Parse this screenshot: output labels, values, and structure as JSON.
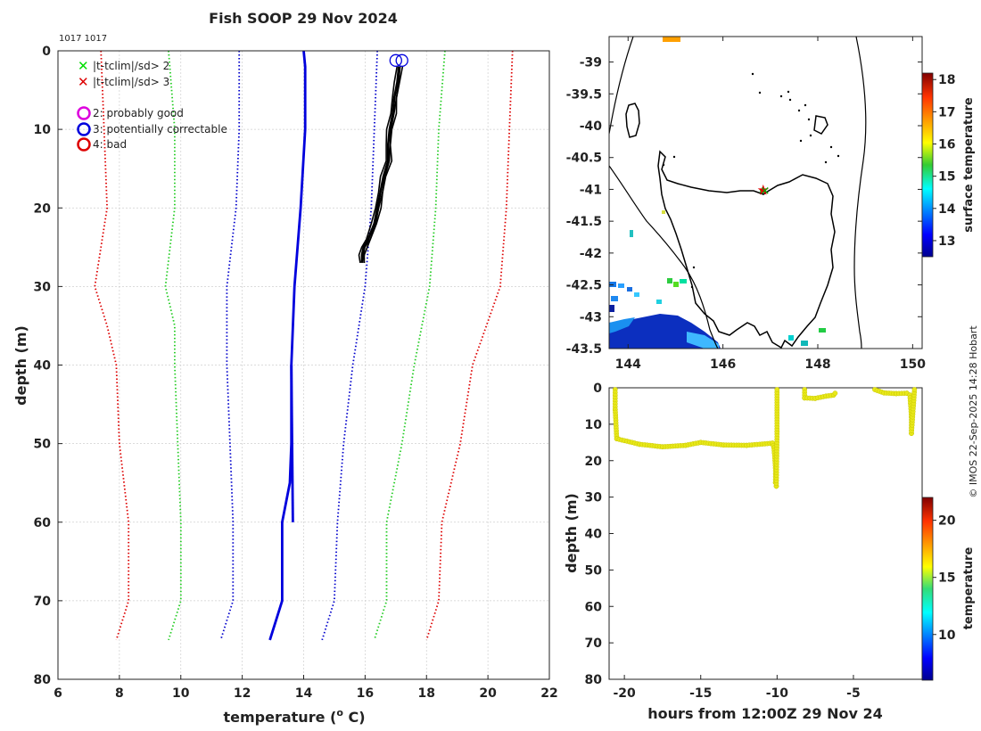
{
  "chart_data": [
    {
      "type": "line",
      "title": "Fish SOOP 29 Nov 2024",
      "id_label": "1017 1017",
      "xlabel": "temperature (",
      "xlabel_sup": "o",
      "xlabel_end": " C)",
      "ylabel": "depth (m)",
      "xlim": [
        6,
        22
      ],
      "ylim": [
        80,
        0
      ],
      "xticks": [
        6,
        8,
        10,
        12,
        14,
        16,
        18,
        20,
        22
      ],
      "yticks": [
        0,
        10,
        20,
        30,
        40,
        50,
        60,
        70,
        80
      ],
      "legend": [
        {
          "marker": "x",
          "color": "#00dd00",
          "label": "|t-tclim|/sd> 2"
        },
        {
          "marker": "x",
          "color": "#dd0000",
          "label": "|t-tclim|/sd> 3"
        },
        {
          "marker": "o",
          "color": "#dd00dd",
          "label": "2: probably good"
        },
        {
          "marker": "o",
          "color": "#0000dd",
          "label": "3: potentially correctable"
        },
        {
          "marker": "o",
          "color": "#dd0000",
          "label": "4: bad"
        }
      ],
      "series": [
        {
          "name": "clim -3sd",
          "color": "#dd0000",
          "style": "dotted",
          "depth": [
            0,
            10,
            20,
            30,
            35,
            40,
            50,
            60,
            70,
            75
          ],
          "values": [
            7.4,
            7.5,
            7.6,
            7.2,
            7.6,
            7.9,
            8.0,
            8.3,
            8.3,
            7.9
          ]
        },
        {
          "name": "clim -2sd",
          "color": "#22cc22",
          "style": "dotted",
          "depth": [
            0,
            10,
            20,
            30,
            35,
            40,
            50,
            60,
            70,
            75
          ],
          "values": [
            9.6,
            9.8,
            9.8,
            9.5,
            9.8,
            9.8,
            9.9,
            10.0,
            10.0,
            9.6
          ]
        },
        {
          "name": "clim -1sd",
          "color": "#0000cc",
          "style": "dotted",
          "depth": [
            0,
            10,
            20,
            30,
            40,
            50,
            60,
            70,
            75
          ],
          "values": [
            11.9,
            11.9,
            11.8,
            11.5,
            11.5,
            11.6,
            11.7,
            11.7,
            11.3
          ]
        },
        {
          "name": "clim mean",
          "color": "#0000dd",
          "style": "solid",
          "depth": [
            0,
            2,
            10,
            20,
            30,
            40,
            50,
            55,
            60,
            70,
            75
          ],
          "values": [
            14.0,
            14.05,
            14.05,
            13.9,
            13.7,
            13.6,
            13.6,
            13.55,
            13.3,
            13.3,
            12.9
          ]
        },
        {
          "name": "clim mean tail",
          "color": "#0000dd",
          "style": "solid",
          "depth": [
            40,
            60
          ],
          "values": [
            13.6,
            13.65
          ]
        },
        {
          "name": "clim +1sd",
          "color": "#0000cc",
          "style": "dotted",
          "depth": [
            0,
            10,
            20,
            30,
            40,
            50,
            60,
            70,
            75
          ],
          "values": [
            16.4,
            16.3,
            16.2,
            16.0,
            15.6,
            15.3,
            15.1,
            15.0,
            14.6
          ]
        },
        {
          "name": "clim +2sd",
          "color": "#22cc22",
          "style": "dotted",
          "depth": [
            0,
            10,
            20,
            30,
            40,
            50,
            60,
            70,
            75
          ],
          "values": [
            18.6,
            18.4,
            18.3,
            18.1,
            17.6,
            17.2,
            16.7,
            16.7,
            16.3
          ]
        },
        {
          "name": "clim +3sd",
          "color": "#dd0000",
          "style": "dotted",
          "depth": [
            0,
            10,
            20,
            30,
            40,
            50,
            60,
            70,
            75
          ],
          "values": [
            20.8,
            20.7,
            20.6,
            20.4,
            19.5,
            19.1,
            18.5,
            18.4,
            18.0
          ]
        },
        {
          "name": "profile",
          "color": "#000000",
          "style": "solid",
          "depth": [
            2,
            4,
            6,
            8,
            10,
            12,
            14,
            16,
            18,
            20,
            22,
            24,
            25,
            26,
            27
          ],
          "values": [
            17.1,
            17.05,
            16.95,
            16.9,
            16.8,
            16.75,
            16.75,
            16.6,
            16.5,
            16.4,
            16.3,
            16.1,
            15.95,
            15.9,
            15.9
          ]
        }
      ],
      "flags": [
        {
          "x": 17.0,
          "depth": 1,
          "color": "#0000dd"
        },
        {
          "x": 17.2,
          "depth": 1,
          "color": "#0000dd"
        }
      ]
    },
    {
      "type": "heatmap",
      "xlim": [
        143.6,
        150.2
      ],
      "ylim": [
        -43.5,
        -38.6
      ],
      "xticks": [
        144,
        146,
        148,
        150
      ],
      "yticks": [
        -39,
        -39.5,
        -40,
        -40.5,
        -41,
        -41.5,
        -42,
        -42.5,
        -43,
        -43.5
      ],
      "ytick_labels": [
        "-39",
        "-39.5",
        "-40",
        "-40.5",
        "-41",
        "-41.5",
        "-42",
        "-42.5",
        "-43",
        "-43.5"
      ],
      "colorbar_label": "surface temperature",
      "colorbar_range": [
        12.5,
        18.2
      ],
      "colorbar_ticks": [
        13,
        14,
        15,
        16,
        17,
        18
      ],
      "station": {
        "lon": 146.85,
        "lat": -41.0,
        "label": "★"
      }
    },
    {
      "type": "scatter",
      "xlabel": "hours from 12:00Z 29 Nov 24",
      "ylabel": "depth (m)",
      "xlim": [
        -21,
        -0.5
      ],
      "ylim": [
        80,
        0
      ],
      "xticks": [
        -20,
        -15,
        -10,
        -5
      ],
      "yticks": [
        0,
        10,
        20,
        30,
        40,
        50,
        60,
        70,
        80
      ],
      "colorbar_label": "temperature",
      "colorbar_range": [
        6,
        22
      ],
      "colorbar_ticks": [
        10,
        15,
        20
      ],
      "point_color": "#e8e81a",
      "tracks": [
        {
          "x": [
            -20.6,
            -20.6,
            -20.5,
            -19.0,
            -17.5,
            -16.0,
            -15.0,
            -13.5,
            -12.0,
            -10.3,
            -10.2,
            -10.1,
            -10.1,
            -10.05
          ],
          "y": [
            0.5,
            6,
            14,
            15.5,
            16.2,
            15.8,
            15.0,
            15.7,
            15.8,
            15.2,
            16.5,
            22,
            26,
            27
          ]
        },
        {
          "x": [
            -10.05,
            -10.0,
            -10.0
          ],
          "y": [
            27,
            12,
            0.5
          ]
        },
        {
          "x": [
            -8.2,
            -8.2,
            -7.5,
            -6.8,
            -6.3,
            -6.2
          ],
          "y": [
            0.5,
            2.8,
            2.9,
            2.3,
            2.0,
            1.5
          ]
        },
        {
          "x": [
            -3.6,
            -3.0,
            -2.2,
            -1.5,
            -1.3,
            -1.2,
            -1.2,
            -1.0
          ],
          "y": [
            0.5,
            1.4,
            1.6,
            1.5,
            2.0,
            8,
            12.5,
            0.5
          ]
        }
      ]
    }
  ],
  "credit": "© IMOS 22-Sep-2025 14:28 Hobart"
}
